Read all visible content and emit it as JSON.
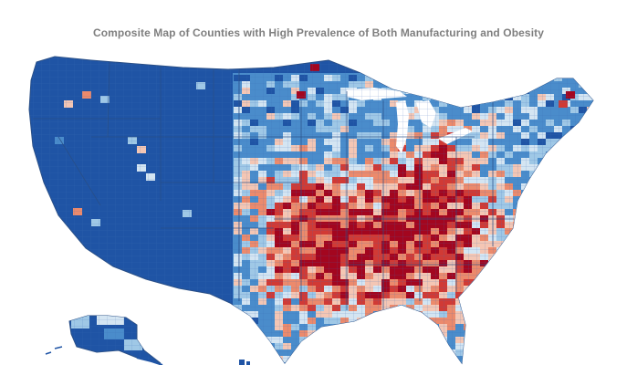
{
  "title": "Composite Map of Counties with High Prevalence of Both Manufacturing and Obesity",
  "colors": {
    "background": "#ffffff",
    "title": "#7f7f7f",
    "base_blue": "#1f54a5",
    "medium_blue": "#4a8ccb",
    "light_blue": "#9fc8e6",
    "pale_blue": "#d4e5f2",
    "pale_red": "#f4c6b4",
    "salmon": "#ec8a6c",
    "red": "#d13a35",
    "dark_red": "#a3061f",
    "border": "#2a4f86",
    "county_line": "#3c6cb5"
  },
  "legend": []
}
